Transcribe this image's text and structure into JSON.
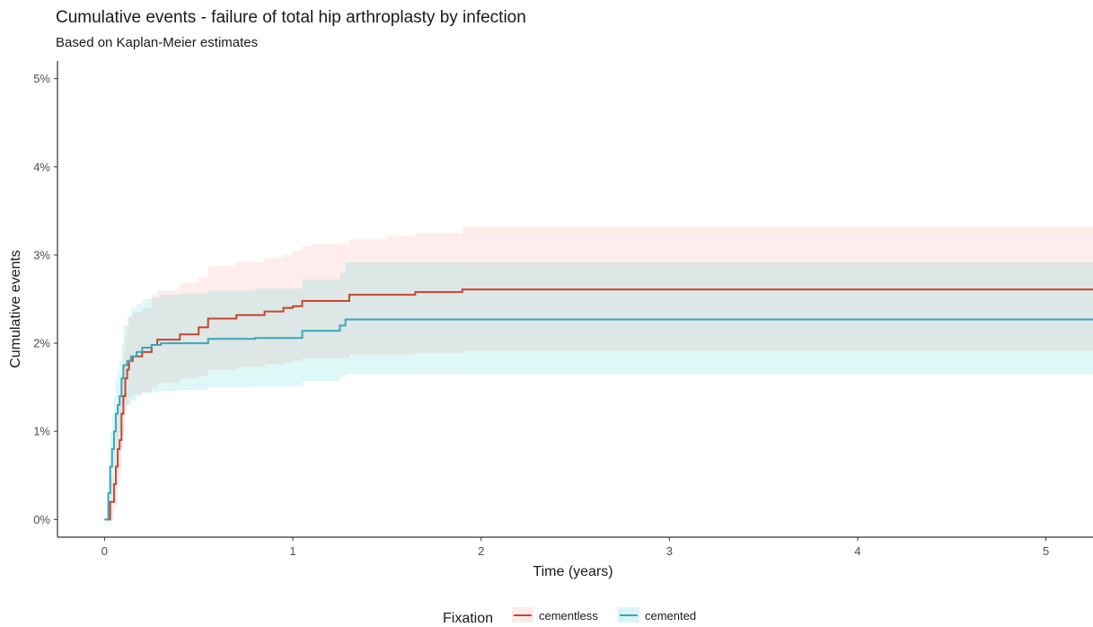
{
  "chart_data": {
    "type": "line",
    "title": "Cumulative events - failure of total hip arthroplasty by infection",
    "subtitle": "Based on Kaplan-Meier estimates",
    "xlabel": "Time (years)",
    "ylabel": "Cumulative events",
    "xlim": [
      -0.25,
      5.25
    ],
    "ylim": [
      -0.002,
      0.052
    ],
    "x_ticks": [
      0,
      1,
      2,
      3,
      4,
      5
    ],
    "x_tick_labels": [
      "0",
      "1",
      "2",
      "3",
      "4",
      "5"
    ],
    "y_ticks": [
      0,
      0.01,
      0.02,
      0.03,
      0.04,
      0.05
    ],
    "y_tick_labels": [
      "0%",
      "1%",
      "2%",
      "3%",
      "4%",
      "5%"
    ],
    "grid": false,
    "legend": {
      "title": "Fixation",
      "position": "bottom"
    },
    "series": [
      {
        "name": "cementless",
        "color": "#c8452e",
        "band_color": "#f8766d",
        "x": [
          0.0,
          0.03,
          0.05,
          0.06,
          0.07,
          0.08,
          0.09,
          0.1,
          0.11,
          0.12,
          0.13,
          0.15,
          0.2,
          0.25,
          0.28,
          0.4,
          0.5,
          0.55,
          0.7,
          0.85,
          0.95,
          1.0,
          1.05,
          1.1,
          1.3,
          1.5,
          1.65,
          1.9,
          5.25
        ],
        "y": [
          0.0,
          0.002,
          0.004,
          0.006,
          0.008,
          0.009,
          0.012,
          0.014,
          0.016,
          0.017,
          0.018,
          0.0185,
          0.019,
          0.0198,
          0.0204,
          0.021,
          0.0218,
          0.0228,
          0.0232,
          0.0236,
          0.024,
          0.0242,
          0.0248,
          0.0248,
          0.0255,
          0.0255,
          0.0258,
          0.0261,
          0.0261
        ],
        "lower": [
          0.0,
          0.0,
          0.001,
          0.002,
          0.004,
          0.005,
          0.008,
          0.01,
          0.012,
          0.013,
          0.014,
          0.0142,
          0.0145,
          0.015,
          0.0155,
          0.016,
          0.0163,
          0.017,
          0.0173,
          0.0176,
          0.0178,
          0.018,
          0.0183,
          0.0183,
          0.0187,
          0.0187,
          0.0189,
          0.0191,
          0.0191
        ],
        "upper": [
          0.0,
          0.005,
          0.008,
          0.01,
          0.013,
          0.014,
          0.017,
          0.019,
          0.021,
          0.022,
          0.023,
          0.0235,
          0.024,
          0.0255,
          0.026,
          0.0268,
          0.0275,
          0.0288,
          0.0292,
          0.0297,
          0.03,
          0.0305,
          0.031,
          0.0312,
          0.0318,
          0.0322,
          0.0325,
          0.0332,
          0.0332
        ]
      },
      {
        "name": "cemented",
        "color": "#3aa6b9",
        "band_color": "#00bfc4",
        "x": [
          0.0,
          0.02,
          0.03,
          0.04,
          0.05,
          0.06,
          0.07,
          0.08,
          0.09,
          0.1,
          0.12,
          0.14,
          0.17,
          0.2,
          0.25,
          0.3,
          0.4,
          0.55,
          0.8,
          1.05,
          1.2,
          1.25,
          1.28,
          5.25
        ],
        "y": [
          0.0,
          0.003,
          0.006,
          0.008,
          0.01,
          0.012,
          0.013,
          0.014,
          0.016,
          0.0175,
          0.018,
          0.0185,
          0.019,
          0.0195,
          0.0198,
          0.02,
          0.02,
          0.0205,
          0.0206,
          0.0214,
          0.0214,
          0.022,
          0.0227,
          0.0227
        ],
        "lower": [
          0.0,
          0.0,
          0.002,
          0.004,
          0.006,
          0.008,
          0.009,
          0.01,
          0.012,
          0.013,
          0.013,
          0.0135,
          0.014,
          0.0143,
          0.0145,
          0.0146,
          0.0147,
          0.015,
          0.0151,
          0.0157,
          0.0157,
          0.0162,
          0.0165,
          0.0165
        ],
        "upper": [
          0.0,
          0.006,
          0.01,
          0.012,
          0.014,
          0.016,
          0.017,
          0.018,
          0.02,
          0.022,
          0.023,
          0.024,
          0.0245,
          0.025,
          0.0252,
          0.0255,
          0.0256,
          0.026,
          0.0262,
          0.0272,
          0.0272,
          0.028,
          0.0292,
          0.0292
        ]
      }
    ]
  }
}
